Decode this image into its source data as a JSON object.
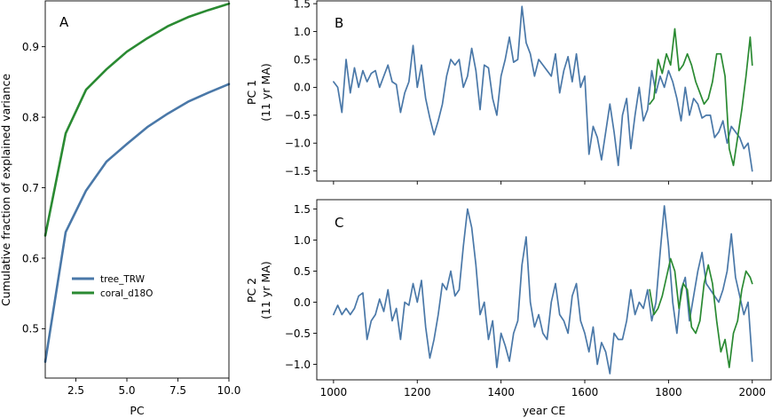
{
  "chart_data": [
    {
      "id": "A",
      "type": "line",
      "panel_label": "A",
      "xlabel": "PC",
      "ylabel": "Cumulative fraction of explained variance",
      "xlim": [
        1,
        10
      ],
      "ylim": [
        0.43,
        0.965
      ],
      "xticks": [
        2.5,
        5.0,
        7.5,
        10.0
      ],
      "xtick_labels": [
        "2.5",
        "5.0",
        "7.5",
        "10.0"
      ],
      "yticks": [
        0.5,
        0.6,
        0.7,
        0.8,
        0.9
      ],
      "ytick_labels": [
        "0.5",
        "0.6",
        "0.7",
        "0.8",
        "0.9"
      ],
      "legend_position": "center-left",
      "series": [
        {
          "name": "tree_TRW",
          "color": "#4a78a8",
          "x": [
            1,
            2,
            3,
            4,
            5,
            6,
            7,
            8,
            9,
            10
          ],
          "y": [
            0.453,
            0.637,
            0.696,
            0.737,
            0.762,
            0.786,
            0.805,
            0.822,
            0.835,
            0.847
          ]
        },
        {
          "name": "coral_d18O",
          "color": "#2a8a32",
          "x": [
            1,
            2,
            3,
            4,
            5,
            6,
            7,
            8,
            9,
            10
          ],
          "y": [
            0.632,
            0.777,
            0.839,
            0.868,
            0.893,
            0.912,
            0.929,
            0.942,
            0.952,
            0.961
          ]
        }
      ]
    },
    {
      "id": "B",
      "type": "line",
      "panel_label": "B",
      "xlabel": "",
      "ylabel_lines": [
        "PC 1",
        "(11 yr MA)"
      ],
      "xlim": [
        960,
        2045
      ],
      "ylim": [
        -1.68,
        1.55
      ],
      "xticks": [
        1000,
        1200,
        1400,
        1600,
        1800,
        2000
      ],
      "yticks": [
        -1.5,
        -1.0,
        -0.5,
        0.0,
        0.5,
        1.0,
        1.5
      ],
      "ytick_labels": [
        "−1.5",
        "−1.0",
        "−0.5",
        "0.0",
        "0.5",
        "1.0",
        "1.5"
      ],
      "series": [
        {
          "name": "",
          "color": "#4a78a8",
          "x": [
            1000,
            1010,
            1020,
            1030,
            1040,
            1050,
            1060,
            1070,
            1080,
            1090,
            1100,
            1110,
            1120,
            1130,
            1140,
            1150,
            1160,
            1170,
            1180,
            1190,
            1200,
            1210,
            1220,
            1230,
            1240,
            1250,
            1260,
            1270,
            1280,
            1290,
            1300,
            1310,
            1320,
            1330,
            1340,
            1350,
            1360,
            1370,
            1380,
            1390,
            1400,
            1410,
            1420,
            1430,
            1440,
            1450,
            1460,
            1470,
            1480,
            1490,
            1500,
            1510,
            1520,
            1530,
            1540,
            1550,
            1560,
            1570,
            1580,
            1590,
            1600,
            1610,
            1620,
            1630,
            1640,
            1650,
            1660,
            1670,
            1680,
            1690,
            1700,
            1710,
            1720,
            1730,
            1740,
            1750,
            1760,
            1770,
            1780,
            1790,
            1800,
            1810,
            1820,
            1830,
            1840,
            1850,
            1860,
            1870,
            1880,
            1890,
            1900,
            1910,
            1920,
            1930,
            1940,
            1950,
            1960,
            1970,
            1980,
            1990,
            2000
          ],
          "y": [
            0.1,
            0.0,
            -0.45,
            0.5,
            -0.1,
            0.35,
            0.0,
            0.3,
            0.1,
            0.25,
            0.3,
            0.0,
            0.2,
            0.4,
            0.1,
            0.05,
            -0.45,
            -0.1,
            0.1,
            0.75,
            0.0,
            0.4,
            -0.2,
            -0.55,
            -0.85,
            -0.6,
            -0.3,
            0.2,
            0.5,
            0.4,
            0.5,
            0.0,
            0.2,
            0.7,
            0.3,
            -0.4,
            0.4,
            0.35,
            -0.2,
            -0.5,
            0.2,
            0.5,
            0.9,
            0.45,
            0.5,
            1.45,
            0.8,
            0.6,
            0.2,
            0.5,
            0.4,
            0.3,
            0.2,
            0.6,
            -0.1,
            0.3,
            0.55,
            0.1,
            0.6,
            0.0,
            0.2,
            -1.2,
            -0.7,
            -0.9,
            -1.3,
            -0.8,
            -0.3,
            -0.8,
            -1.4,
            -0.5,
            -0.2,
            -1.1,
            -0.5,
            0.0,
            -0.6,
            -0.4,
            0.3,
            -0.1,
            0.2,
            0.0,
            0.3,
            0.1,
            -0.2,
            -0.6,
            0.0,
            -0.5,
            -0.2,
            -0.3,
            -0.55,
            -0.5,
            -0.5,
            -0.9,
            -0.8,
            -0.6,
            -1.0,
            -0.7,
            -0.8,
            -0.9,
            -1.1,
            -1.0,
            -1.5
          ]
        },
        {
          "name": "",
          "color": "#2a8a32",
          "x": [
            1755,
            1765,
            1775,
            1785,
            1795,
            1805,
            1815,
            1825,
            1835,
            1845,
            1855,
            1865,
            1875,
            1885,
            1895,
            1905,
            1915,
            1925,
            1935,
            1945,
            1955,
            1965,
            1975,
            1985,
            1995,
            2000
          ],
          "y": [
            -0.3,
            -0.2,
            0.5,
            0.25,
            0.6,
            0.4,
            1.05,
            0.3,
            0.4,
            0.6,
            0.4,
            0.1,
            -0.1,
            -0.3,
            -0.2,
            0.1,
            0.6,
            0.6,
            0.2,
            -1.1,
            -1.4,
            -0.9,
            -0.4,
            0.2,
            0.9,
            0.4
          ]
        }
      ]
    },
    {
      "id": "C",
      "type": "line",
      "panel_label": "C",
      "xlabel": "year CE",
      "ylabel_lines": [
        "PC 2",
        "(11 yr MA)"
      ],
      "xlim": [
        960,
        2045
      ],
      "ylim": [
        -1.25,
        1.65
      ],
      "xticks": [
        1000,
        1200,
        1400,
        1600,
        1800,
        2000
      ],
      "xtick_labels": [
        "1000",
        "1200",
        "1400",
        "1600",
        "1800",
        "2000"
      ],
      "yticks": [
        -1.0,
        -0.5,
        0.0,
        0.5,
        1.0,
        1.5
      ],
      "ytick_labels": [
        "−1.0",
        "−0.5",
        "0.0",
        "0.5",
        "1.0",
        "1.5"
      ],
      "series": [
        {
          "name": "",
          "color": "#4a78a8",
          "x": [
            1000,
            1010,
            1020,
            1030,
            1040,
            1050,
            1060,
            1070,
            1080,
            1090,
            1100,
            1110,
            1120,
            1130,
            1140,
            1150,
            1160,
            1170,
            1180,
            1190,
            1200,
            1210,
            1220,
            1230,
            1240,
            1250,
            1260,
            1270,
            1280,
            1290,
            1300,
            1310,
            1320,
            1330,
            1340,
            1350,
            1360,
            1370,
            1380,
            1390,
            1400,
            1410,
            1420,
            1430,
            1440,
            1450,
            1460,
            1470,
            1480,
            1490,
            1500,
            1510,
            1520,
            1530,
            1540,
            1550,
            1560,
            1570,
            1580,
            1590,
            1600,
            1610,
            1620,
            1630,
            1640,
            1650,
            1660,
            1670,
            1680,
            1690,
            1700,
            1710,
            1720,
            1730,
            1740,
            1750,
            1760,
            1770,
            1780,
            1790,
            1800,
            1810,
            1820,
            1830,
            1840,
            1850,
            1860,
            1870,
            1880,
            1890,
            1900,
            1910,
            1920,
            1930,
            1940,
            1950,
            1960,
            1970,
            1980,
            1990,
            2000
          ],
          "y": [
            -0.2,
            -0.05,
            -0.2,
            -0.1,
            -0.2,
            -0.1,
            0.1,
            0.15,
            -0.6,
            -0.3,
            -0.2,
            0.05,
            -0.15,
            0.2,
            -0.3,
            -0.1,
            -0.6,
            0.0,
            -0.05,
            0.3,
            0.0,
            0.35,
            -0.4,
            -0.9,
            -0.6,
            -0.2,
            0.3,
            0.2,
            0.5,
            0.1,
            0.2,
            0.9,
            1.5,
            1.2,
            0.6,
            -0.2,
            0.0,
            -0.6,
            -0.3,
            -1.05,
            -0.5,
            -0.7,
            -0.95,
            -0.5,
            -0.3,
            0.6,
            1.05,
            0.0,
            -0.4,
            -0.2,
            -0.5,
            -0.6,
            0.0,
            0.3,
            -0.2,
            -0.3,
            -0.5,
            0.1,
            0.3,
            -0.3,
            -0.5,
            -0.8,
            -0.4,
            -1.0,
            -0.65,
            -0.8,
            -1.15,
            -0.5,
            -0.6,
            -0.6,
            -0.3,
            0.2,
            -0.2,
            0.0,
            -0.1,
            0.2,
            -0.3,
            0.0,
            0.8,
            1.55,
            0.9,
            0.0,
            -0.5,
            0.2,
            0.4,
            -0.3,
            0.1,
            0.5,
            0.8,
            0.3,
            0.2,
            0.1,
            0.0,
            0.2,
            0.5,
            1.1,
            0.4,
            0.1,
            -0.2,
            0.0,
            -0.95
          ]
        },
        {
          "name": "",
          "color": "#2a8a32",
          "x": [
            1755,
            1765,
            1775,
            1785,
            1795,
            1805,
            1815,
            1825,
            1835,
            1845,
            1855,
            1865,
            1875,
            1885,
            1895,
            1905,
            1915,
            1925,
            1935,
            1945,
            1955,
            1965,
            1975,
            1985,
            1995,
            2000
          ],
          "y": [
            0.2,
            -0.2,
            -0.1,
            0.1,
            0.4,
            0.7,
            0.5,
            -0.1,
            0.3,
            0.2,
            -0.4,
            -0.5,
            -0.3,
            0.3,
            0.6,
            0.3,
            -0.3,
            -0.8,
            -0.6,
            -1.05,
            -0.5,
            -0.3,
            0.2,
            0.5,
            0.4,
            0.3
          ]
        }
      ]
    }
  ]
}
